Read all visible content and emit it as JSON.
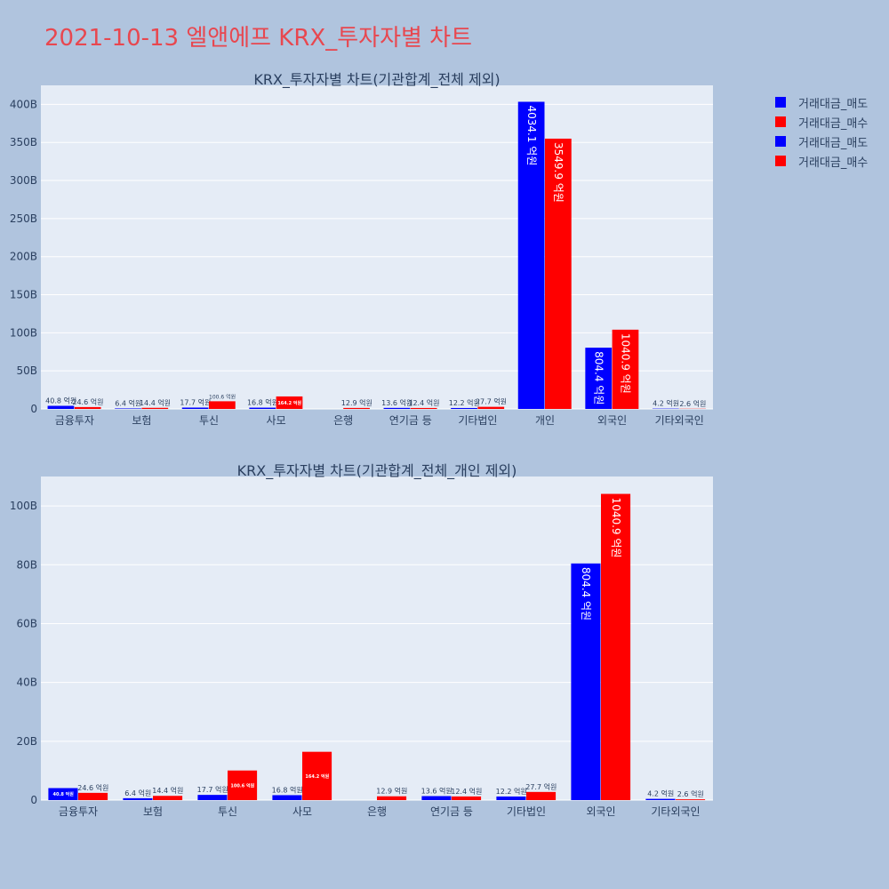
{
  "page_title": "2021-10-13 엘앤에프 KRX_투자자별 차트",
  "legend": [
    {
      "label": "거래대금_매도",
      "color": "#0000ff"
    },
    {
      "label": "거래대금_매수",
      "color": "#ff0000"
    },
    {
      "label": "거래대금_매도",
      "color": "#0000ff"
    },
    {
      "label": "거래대금_매수",
      "color": "#ff0000"
    }
  ],
  "chart_data": [
    {
      "type": "bar",
      "title": "KRX_투자자별 차트(기관합계_전체 제외)",
      "categories": [
        "금융투자",
        "보험",
        "투신",
        "사모",
        "은행",
        "연기금 등",
        "기타법인",
        "개인",
        "외국인",
        "기타외국인"
      ],
      "series": [
        {
          "name": "거래대금_매도",
          "color": "#0000ff",
          "values": [
            40.8,
            6.4,
            17.7,
            16.8,
            0,
            13.6,
            12.2,
            4034.1,
            804.4,
            4.2
          ],
          "labels": [
            "40.8 억원",
            "6.4 억원",
            "17.7 억원",
            "16.8 억원",
            "",
            "13.6 억원",
            "12.2 억원",
            "4034.1 억원",
            "804.4 억원",
            "4.2 억원"
          ]
        },
        {
          "name": "거래대금_매수",
          "color": "#ff0000",
          "values": [
            24.6,
            14.4,
            100.6,
            164.2,
            12.9,
            12.4,
            27.7,
            3549.9,
            1040.9,
            2.6
          ],
          "labels": [
            "24.6 억원",
            "14.4 억원",
            "100.6 억원",
            "164.2 억원",
            "12.9 억원",
            "12.4 억원",
            "27.7 억원",
            "3549.9 억원",
            "1040.9 억원",
            "2.6 억원"
          ]
        }
      ],
      "value_unit": "억원",
      "yticks": [
        0,
        50,
        100,
        150,
        200,
        250,
        300,
        350,
        400
      ],
      "ytick_labels": [
        "0",
        "50B",
        "100B",
        "150B",
        "200B",
        "250B",
        "300B",
        "350B",
        "400B"
      ],
      "ylim": [
        0,
        4250
      ],
      "grid": true
    },
    {
      "type": "bar",
      "title": "KRX_투자자별 차트(기관합계_전체_개인 제외)",
      "categories": [
        "금융투자",
        "보험",
        "투신",
        "사모",
        "은행",
        "연기금 등",
        "기타법인",
        "외국인",
        "기타외국인"
      ],
      "series": [
        {
          "name": "거래대금_매도",
          "color": "#0000ff",
          "values": [
            40.8,
            6.4,
            17.7,
            16.8,
            0,
            13.6,
            12.2,
            804.4,
            4.2
          ],
          "labels": [
            "40.8 억원",
            "6.4 억원",
            "17.7 억원",
            "16.8 억원",
            "",
            "13.6 억원",
            "12.2 억원",
            "804.4 억원",
            "4.2 억원"
          ]
        },
        {
          "name": "거래대금_매수",
          "color": "#ff0000",
          "values": [
            24.6,
            14.4,
            100.6,
            164.2,
            12.9,
            12.4,
            27.7,
            1040.9,
            2.6
          ],
          "labels": [
            "24.6 억원",
            "14.4 억원",
            "100.6 억원",
            "164.2 억원",
            "12.9 억원",
            "12.4 억원",
            "27.7 억원",
            "1040.9 억원",
            "2.6 억원"
          ]
        }
      ],
      "value_unit": "억원",
      "yticks": [
        0,
        20,
        40,
        60,
        80,
        100
      ],
      "ytick_labels": [
        "0",
        "20B",
        "40B",
        "60B",
        "80B",
        "100B"
      ],
      "ylim": [
        0,
        1100
      ],
      "grid": true
    }
  ]
}
